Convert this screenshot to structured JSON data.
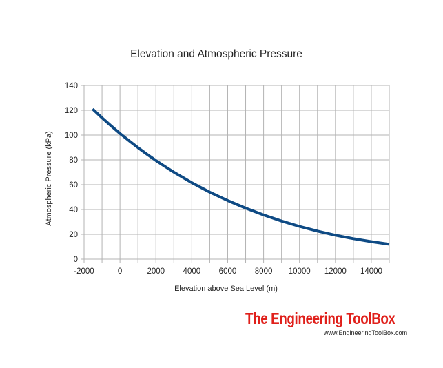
{
  "chart_data": {
    "type": "line",
    "title": "Elevation and Atmospheric Pressure",
    "xlabel": "Elevation above Sea Level (m)",
    "ylabel": "Atmospheric Pressure (kPa)",
    "xlim": [
      -2000,
      15000
    ],
    "ylim": [
      0,
      140
    ],
    "x_ticks": [
      -2000,
      0,
      2000,
      4000,
      6000,
      8000,
      10000,
      12000,
      14000
    ],
    "y_ticks": [
      0,
      20,
      40,
      60,
      80,
      100,
      120,
      140
    ],
    "x_minor_step": 1000,
    "grid": true,
    "legend": "none",
    "series": [
      {
        "color": "#0e4a84",
        "x": [
          -1524,
          -1000,
          -500,
          0,
          500,
          1000,
          1500,
          2000,
          2500,
          3000,
          4000,
          5000,
          6000,
          7000,
          8000,
          9000,
          10000,
          11000,
          12000,
          13000,
          14000,
          15000
        ],
        "y": [
          121.0,
          113.9,
          107.5,
          101.3,
          95.5,
          89.9,
          84.6,
          79.5,
          74.7,
          70.1,
          61.6,
          54.0,
          47.2,
          41.1,
          35.6,
          30.7,
          26.4,
          22.6,
          19.3,
          16.5,
          14.1,
          12.0
        ]
      }
    ]
  },
  "branding": {
    "name": "The Engineering ToolBox",
    "url": "www.EngineeringToolBox.com",
    "color": "#e0201b"
  }
}
